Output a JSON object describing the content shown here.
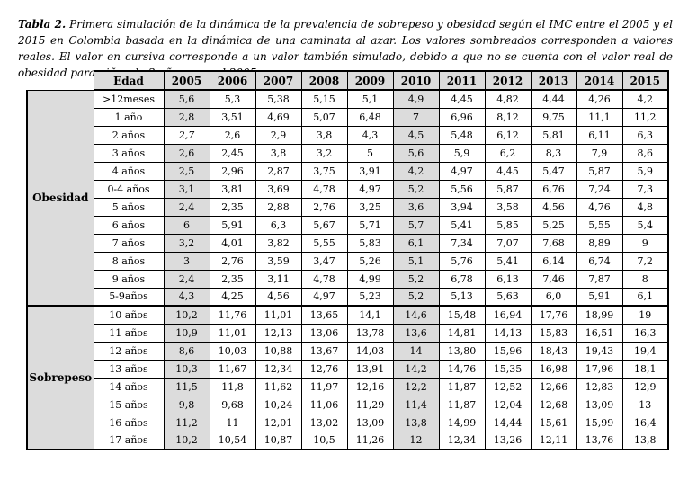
{
  "caption": {
    "label": "Tabla 2.",
    "text": " Primera simulación de la dinámica de la prevalencia de sobrepeso y obesidad según el IMC entre el 2005 y el 2015 en Colombia basada en la dinámica de una caminata al azar. Los valores sombreados corresponden a valores reales. El valor en cursiva corresponde a un valor también simulado, debido a que no se cuenta con el valor real de obesidad para niños de 2 años para el 2005."
  },
  "chart_data": {
    "type": "table",
    "columns": [
      "Edad",
      "2005",
      "2006",
      "2007",
      "2008",
      "2009",
      "2010",
      "2011",
      "2012",
      "2013",
      "2014",
      "2015"
    ],
    "shaded_year_indices": [
      0,
      5
    ],
    "shading_note": "Los valores sombreados corresponden a valores reales (2005 y 2010)",
    "italic_simulated_cell": {
      "section": "Obesidad",
      "edad": "2 años",
      "year": "2005"
    },
    "sections": [
      {
        "label": "Obesidad",
        "rows": [
          {
            "edad": ">12meses",
            "values": [
              "5,6",
              "5,3",
              "5,38",
              "5,15",
              "5,1",
              "4,9",
              "4,45",
              "4,82",
              "4,44",
              "4,26",
              "4,2"
            ]
          },
          {
            "edad": "1 año",
            "values": [
              "2,8",
              "3,51",
              "4,69",
              "5,07",
              "6,48",
              "7",
              "6,96",
              "8,12",
              "9,75",
              "11,1",
              "11,2"
            ]
          },
          {
            "edad": "2 años",
            "values": [
              "2,7",
              "2,6",
              "2,9",
              "3,8",
              "4,3",
              "4,5",
              "5,48",
              "6,12",
              "5,81",
              "6,11",
              "6,3"
            ],
            "italic_first": true
          },
          {
            "edad": "3 años",
            "values": [
              "2,6",
              "2,45",
              "3,8",
              "3,2",
              "5",
              "5,6",
              "5,9",
              "6,2",
              "8,3",
              "7,9",
              "8,6"
            ]
          },
          {
            "edad": "4 años",
            "values": [
              "2,5",
              "2,96",
              "2,87",
              "3,75",
              "3,91",
              "4,2",
              "4,97",
              "4,45",
              "5,47",
              "5,87",
              "5,9"
            ]
          },
          {
            "edad": "0-4 años",
            "values": [
              "3,1",
              "3,81",
              "3,69",
              "4,78",
              "4,97",
              "5,2",
              "5,56",
              "5,87",
              "6,76",
              "7,24",
              "7,3"
            ]
          },
          {
            "edad": "5 años",
            "values": [
              "2,4",
              "2,35",
              "2,88",
              "2,76",
              "3,25",
              "3,6",
              "3,94",
              "3,58",
              "4,56",
              "4,76",
              "4,8"
            ]
          },
          {
            "edad": "6 años",
            "values": [
              "6",
              "5,91",
              "6,3",
              "5,67",
              "5,71",
              "5,7",
              "5,41",
              "5,85",
              "5,25",
              "5,55",
              "5,4"
            ]
          },
          {
            "edad": "7 años",
            "values": [
              "3,2",
              "4,01",
              "3,82",
              "5,55",
              "5,83",
              "6,1",
              "7,34",
              "7,07",
              "7,68",
              "8,89",
              "9"
            ]
          },
          {
            "edad": "8 años",
            "values": [
              "3",
              "2,76",
              "3,59",
              "3,47",
              "5,26",
              "5,1",
              "5,76",
              "5,41",
              "6,14",
              "6,74",
              "7,2"
            ]
          },
          {
            "edad": "9 años",
            "values": [
              "2,4",
              "2,35",
              "3,11",
              "4,78",
              "4,99",
              "5,2",
              "6,78",
              "6,13",
              "7,46",
              "7,87",
              "8"
            ]
          },
          {
            "edad": "5-9años",
            "values": [
              "4,3",
              "4,25",
              "4,56",
              "4,97",
              "5,23",
              "5,2",
              "5,13",
              "5,63",
              "6,0",
              "5,91",
              "6,1"
            ]
          }
        ]
      },
      {
        "label": "Sobrepeso",
        "rows": [
          {
            "edad": "10 años",
            "values": [
              "10,2",
              "11,76",
              "11,01",
              "13,65",
              "14,1",
              "14,6",
              "15,48",
              "16,94",
              "17,76",
              "18,99",
              "19"
            ]
          },
          {
            "edad": "11 años",
            "values": [
              "10,9",
              "11,01",
              "12,13",
              "13,06",
              "13,78",
              "13,6",
              "14,81",
              "14,13",
              "15,83",
              "16,51",
              "16,3"
            ]
          },
          {
            "edad": "12 años",
            "values": [
              "8,6",
              "10,03",
              "10,88",
              "13,67",
              "14,03",
              "14",
              "13,80",
              "15,96",
              "18,43",
              "19,43",
              "19,4"
            ]
          },
          {
            "edad": "13 años",
            "values": [
              "10,3",
              "11,67",
              "12,34",
              "12,76",
              "13,91",
              "14,2",
              "14,76",
              "15,35",
              "16,98",
              "17,96",
              "18,1"
            ]
          },
          {
            "edad": "14 años",
            "values": [
              "11,5",
              "11,8",
              "11,62",
              "11,97",
              "12,16",
              "12,2",
              "11,87",
              "12,52",
              "12,66",
              "12,83",
              "12,9"
            ]
          },
          {
            "edad": "15 años",
            "values": [
              "9,8",
              "9,68",
              "10,24",
              "11,06",
              "11,29",
              "11,4",
              "11,87",
              "12,04",
              "12,68",
              "13,09",
              "13"
            ]
          },
          {
            "edad": "16 años",
            "values": [
              "11,2",
              "11",
              "12,01",
              "13,02",
              "13,09",
              "13,8",
              "14,99",
              "14,44",
              "15,61",
              "15,99",
              "16,4"
            ]
          },
          {
            "edad": "17 años",
            "values": [
              "10,2",
              "10,54",
              "10,87",
              "10,5",
              "11,26",
              "12",
              "12,34",
              "13,26",
              "12,11",
              "13,76",
              "13,8"
            ]
          }
        ]
      }
    ],
    "colors": {
      "shaded_cell": "#dcdcdc",
      "header_bg": "#dcdcdc",
      "border": "#000000",
      "background": "#ffffff",
      "text": "#000000"
    }
  }
}
